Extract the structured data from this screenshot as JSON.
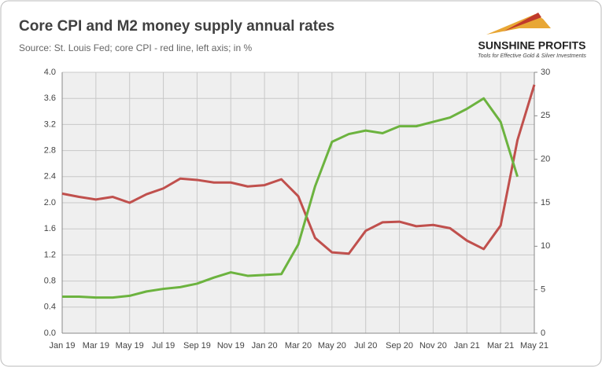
{
  "chart_data": {
    "type": "line",
    "title": "Core CPI and M2 money supply annual rates",
    "subtitle": "Source: St. Louis Fed; core CPI - red line, left axis; in %",
    "categories": [
      "Jan 19",
      null,
      "Mar 19",
      null,
      "May 19",
      null,
      "Jul 19",
      null,
      "Sep 19",
      null,
      "Nov 19",
      null,
      "Jan 20",
      null,
      "Mar 20",
      null,
      "May 20",
      null,
      "Jul 20",
      null,
      "Sep 20",
      null,
      "Nov 20",
      null,
      "Jan 21",
      null,
      "Mar 21",
      null,
      "May 21"
    ],
    "series": [
      {
        "color": "#c0504d",
        "values": [
          2.14,
          2.09,
          2.05,
          2.09,
          2.0,
          2.13,
          2.22,
          2.37,
          2.35,
          2.31,
          2.31,
          2.25,
          2.27,
          2.36,
          2.1,
          1.46,
          1.24,
          1.22,
          1.57,
          1.7,
          1.71,
          1.64,
          1.66,
          1.61,
          1.42,
          1.29,
          1.65,
          2.96,
          3.81
        ]
      },
      {
        "color": "#6cb33f",
        "axis": "y2",
        "values": [
          4.2,
          4.2,
          4.1,
          4.1,
          4.3,
          4.8,
          5.1,
          5.3,
          5.7,
          6.4,
          7.0,
          6.6,
          6.7,
          6.8,
          10.2,
          16.9,
          22.0,
          22.9,
          23.3,
          23.0,
          23.8,
          23.8,
          24.3,
          24.8,
          25.8,
          27.0,
          24.3,
          18.0,
          null
        ]
      }
    ],
    "ylim": [
      0,
      4
    ],
    "yticks": [
      {
        "value": 0,
        "label": "0.0"
      },
      0.4,
      0.8,
      1.2,
      1.6,
      {
        "value": 2,
        "label": "2.0"
      },
      2.4,
      2.8,
      3.2,
      3.6,
      {
        "value": 4,
        "label": "4.0"
      }
    ],
    "y2lim": [
      0,
      30
    ],
    "y2ticks": [
      0,
      5,
      10,
      15,
      20,
      25,
      30
    ],
    "grid": true
  },
  "logo": {
    "name": "SUNSHINE PROFITS",
    "tagline": "Tools for Effective Gold & Silver Investments"
  }
}
